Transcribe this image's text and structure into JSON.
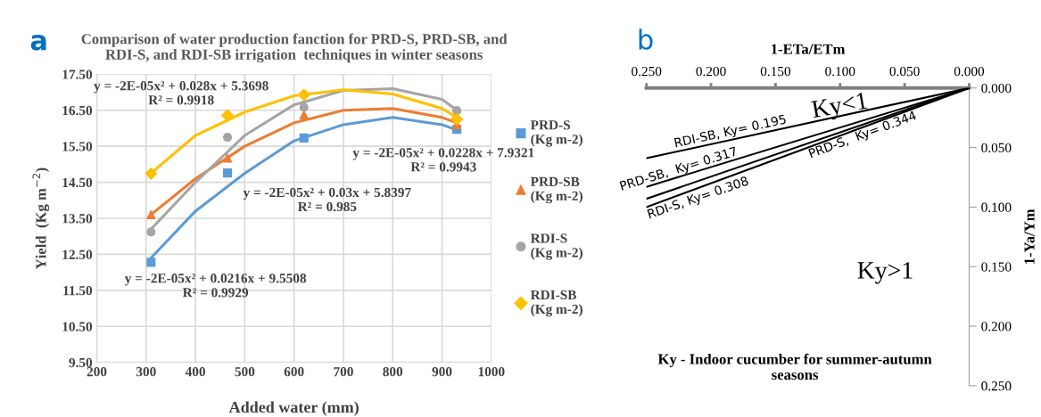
{
  "chart_data": [
    {
      "type": "scatter",
      "title": "Comparison of water production fanction for PRD-S, PRD-SB, and\nRDI-S, and RDI-SB irrigation  techniques in winter seasons",
      "xlabel": "Added water (mm)",
      "ylabel": "Yield  (Kg m$^{−2}$)",
      "x": [
        310,
        465,
        620,
        930
      ],
      "series": [
        {
          "name": "PRD-S\n(Kg m-2)",
          "color": "#5b9bd5",
          "marker": "square",
          "values": [
            12.28,
            14.76,
            15.73,
            15.97
          ]
        },
        {
          "name": "PRD-SB\n(Kg m-2)",
          "color": "#ed7d31",
          "marker": "triangle",
          "values": [
            13.6,
            15.17,
            16.37,
            16.1
          ]
        },
        {
          "name": "RDI-S\n(Kg m-2)",
          "color": "#a5a5a5",
          "marker": "circle",
          "values": [
            13.12,
            15.75,
            16.58,
            16.49
          ]
        },
        {
          "name": "RDI-SB\n(Kg m-2)",
          "color": "#ffc000",
          "marker": "diamond",
          "values": [
            14.74,
            16.36,
            16.93,
            16.25
          ]
        },
        {
          "type": "line",
          "color": "#5b9bd5",
          "x": [
            310,
            400,
            500,
            600,
            700,
            800,
            900,
            930
          ],
          "values": [
            12.4,
            13.7,
            14.75,
            15.65,
            16.1,
            16.3,
            16.1,
            15.95
          ]
        },
        {
          "type": "line",
          "color": "#ed7d31",
          "x": [
            310,
            400,
            500,
            600,
            700,
            800,
            900,
            930
          ],
          "values": [
            13.6,
            14.6,
            15.5,
            16.15,
            16.5,
            16.55,
            16.3,
            16.15
          ]
        },
        {
          "type": "line",
          "color": "#a5a5a5",
          "x": [
            310,
            400,
            500,
            600,
            700,
            800,
            900,
            930
          ],
          "values": [
            13.2,
            14.5,
            15.8,
            16.65,
            17.05,
            17.1,
            16.8,
            16.5
          ]
        },
        {
          "type": "line",
          "color": "#ffc000",
          "x": [
            310,
            400,
            500,
            600,
            700,
            800,
            900,
            930
          ],
          "values": [
            14.75,
            15.8,
            16.45,
            16.9,
            17.07,
            16.95,
            16.55,
            16.3
          ]
        }
      ],
      "xlim": [
        200,
        1000
      ],
      "xticks": [
        200,
        300,
        400,
        500,
        600,
        700,
        800,
        900,
        1000
      ],
      "ylim": [
        9.5,
        17.5
      ],
      "yticks": [
        {
          "value": 9.5,
          "label": "9.50"
        },
        {
          "value": 10.5,
          "label": "10.50"
        },
        {
          "value": 11.5,
          "label": "11.50"
        },
        {
          "value": 12.5,
          "label": "12.50"
        },
        {
          "value": 13.5,
          "label": "13.50"
        },
        {
          "value": 14.5,
          "label": "14.50"
        },
        {
          "value": 15.5,
          "label": "15.50"
        },
        {
          "value": 16.5,
          "label": "16.50"
        },
        {
          "value": 17.5,
          "label": "17.50"
        }
      ],
      "grid": true,
      "legend": "right",
      "annotations": [
        "a",
        "y = -2E-05x² + 0.028x + 5.3698\nR² = 0.9918",
        "y = -2E-05x² + 0.0228x + 7.9321\nR² = 0.9943",
        "y = -2E-05x² + 0.03x + 5.8397\nR² = 0.985",
        "y = -2E-05x² + 0.0216x + 9.5508\nR² = 0.9929"
      ]
    },
    {
      "type": "line",
      "title": "Ky - Indoor cucumber for summer-autumn\nseasons",
      "xlabel": "1-ETa/ETm",
      "ylabel": "1-Ya/Ym",
      "x": [
        0.25,
        0
      ],
      "series": [
        {
          "name": "RDI-SB, Ky= 0.195",
          "color": "#000000",
          "values": [
            0.059,
            0
          ]
        },
        {
          "name": "PRD-SB,  Ky= 0.317",
          "color": "#000000",
          "values": [
            0.083,
            0
          ]
        },
        {
          "name": "RDI-S, Ky= 0.308",
          "color": "#000000",
          "values": [
            0.093,
            0
          ]
        },
        {
          "name": "PRD-S,  Ky= 0.344",
          "color": "#000000",
          "values": [
            0.1,
            0
          ]
        }
      ],
      "xlim": [
        0.25,
        0
      ],
      "xticks": [
        {
          "value": 0.25,
          "label": "0.250"
        },
        {
          "value": 0.2,
          "label": "0.200"
        },
        {
          "value": 0.15,
          "label": "0.150"
        },
        {
          "value": 0.1,
          "label": "0.100"
        },
        {
          "value": 0.05,
          "label": "0.050"
        },
        {
          "value": 0,
          "label": "0.000"
        }
      ],
      "ylim": [
        0.25,
        0
      ],
      "yticks": [
        {
          "value": 0,
          "label": "0.000"
        },
        {
          "value": 0.05,
          "label": "0.050"
        },
        {
          "value": 0.1,
          "label": "0.100"
        },
        {
          "value": 0.15,
          "label": "0.150"
        },
        {
          "value": 0.2,
          "label": "0.200"
        },
        {
          "value": 0.25,
          "label": "0.250"
        }
      ],
      "annotations": [
        "b",
        "Ky<1",
        "Ky>1"
      ]
    }
  ]
}
